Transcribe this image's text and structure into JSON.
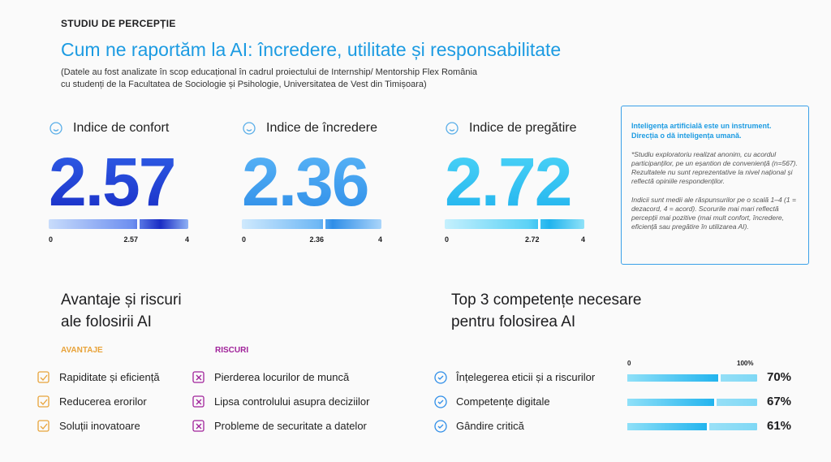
{
  "header": {
    "kicker": "STUDIU DE PERCEPȚIE",
    "title": "Cum ne raportăm la AI: încredere, utilitate și responsabilitate",
    "subtitle_lines": [
      "(Datele au fost analizate în scop educațional în cadrul proiectului de Internship/ Mentorship Flex România",
      "cu studenți de la Facultatea de Sociologie și Psihologie, Universitatea de Vest din Timișoara)"
    ]
  },
  "indices": [
    {
      "label": "Indice de confort",
      "value": 2.57,
      "scale": [
        0,
        4
      ]
    },
    {
      "label": "Indice de încredere",
      "value": 2.36,
      "scale": [
        0,
        4
      ]
    },
    {
      "label": "Indice de pregătire",
      "value": 2.72,
      "scale": [
        0,
        4
      ]
    }
  ],
  "note": {
    "highlight": [
      "Inteligența artificială este un instrument.",
      "Direcția o dă inteligența umană."
    ],
    "paragraphs": [
      "*Studiu exploratoriu realizat anonim, cu acordul participanților, pe un eșantion de conveniență (n=567). Rezultatele nu sunt reprezentative la nivel național și reflectă opiniile respondenților.",
      "Indicii sunt medii ale răspunsurilor pe o scală 1–4 (1 = dezacord, 4 = acord). Scorurile mai mari reflectă percepții mai pozitive (mai mult confort, încredere, eficiență sau pregătire în utilizarea AI)."
    ]
  },
  "advantages": {
    "title_lines": [
      "Avantaje și riscuri",
      "ale folosirii AI"
    ],
    "pros_title": "AVANTAJE",
    "pros": [
      "Rapiditate și eficiență",
      "Reducerea erorilor",
      "Soluții inovatoare"
    ],
    "cons_title": "RISCURI",
    "cons": [
      "Pierderea locurilor de muncă",
      "Lipsa controlului asupra deciziilor",
      "Probleme de securitate a datelor"
    ]
  },
  "skills": {
    "title_lines": [
      "Top 3 competențe necesare",
      "pentru folosirea AI"
    ],
    "scale": [
      0,
      {
        "value": 100,
        "label": "100%"
      }
    ],
    "items": [
      {
        "label": "Înțelegerea eticii și a riscurilor",
        "value": 70,
        "value_label": "70%"
      },
      {
        "label": "Competențe digitale",
        "value": 67,
        "value_label": "67%"
      },
      {
        "label": "Gândire critică",
        "value": 61,
        "value_label": "61%"
      }
    ]
  }
}
